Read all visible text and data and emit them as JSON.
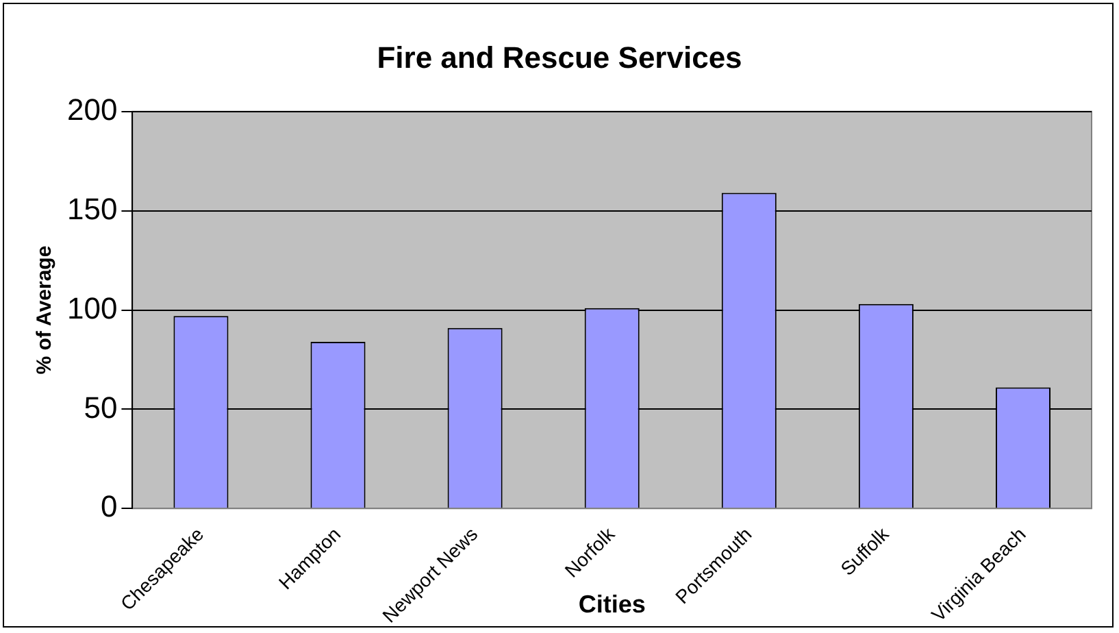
{
  "chart_data": {
    "type": "bar",
    "title": "Fire and Rescue Services",
    "xlabel": "Cities",
    "ylabel": "% of Average",
    "categories": [
      "Chesapeake",
      "Hampton",
      "Newport News",
      "Norfolk",
      "Portsmouth",
      "Suffolk",
      "Virginia Beach"
    ],
    "values": [
      97,
      84,
      91,
      101,
      159,
      103,
      61
    ],
    "color": "#9999ff",
    "ylim": [
      0,
      200
    ],
    "yticks": [
      0,
      50,
      100,
      150,
      200
    ],
    "grid": "y"
  }
}
